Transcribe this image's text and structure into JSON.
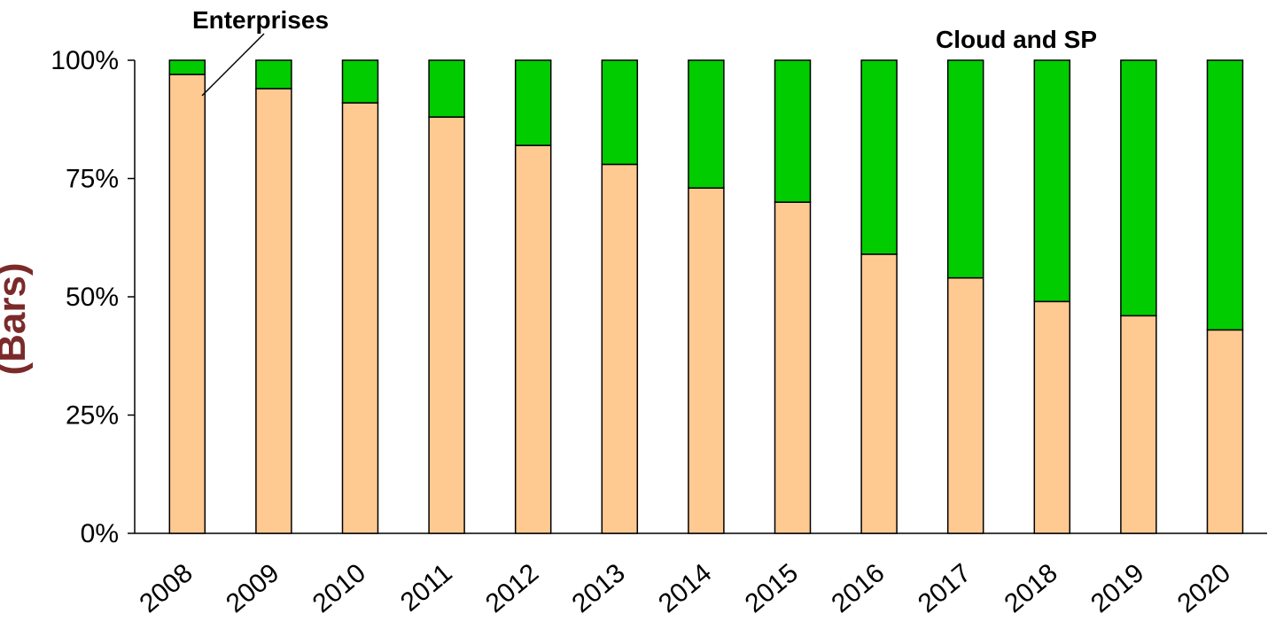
{
  "chart_data": {
    "type": "bar",
    "stacked": true,
    "categories": [
      "2008",
      "2009",
      "2010",
      "2011",
      "2012",
      "2013",
      "2014",
      "2015",
      "2016",
      "2017",
      "2018",
      "2019",
      "2020"
    ],
    "series": [
      {
        "name": "Enterprises",
        "color": "#FFC992",
        "values": [
          97,
          94,
          91,
          88,
          82,
          78,
          73,
          70,
          59,
          54,
          49,
          46,
          43
        ]
      },
      {
        "name": "Cloud and SP",
        "color": "#00CC00",
        "values": [
          3,
          6,
          9,
          12,
          18,
          22,
          27,
          30,
          41,
          46,
          51,
          54,
          57
        ]
      }
    ],
    "ylim": [
      0,
      100
    ],
    "yticks": [
      0,
      25,
      50,
      75,
      100
    ],
    "ytick_labels": [
      "0%",
      "25%",
      "50%",
      "75%",
      "100%"
    ],
    "ylabel_visible": "(Bars)",
    "grid": false,
    "annotations": [
      {
        "text": "Enterprises"
      },
      {
        "text": "Cloud and SP"
      }
    ]
  }
}
